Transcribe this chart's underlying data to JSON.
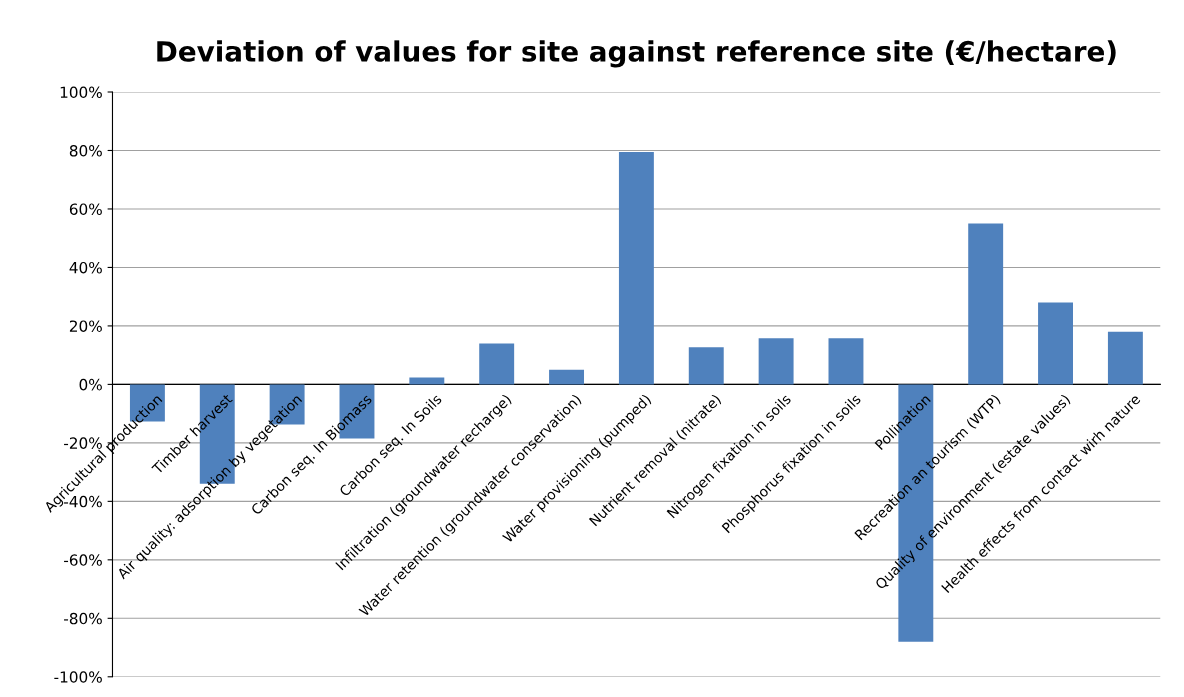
{
  "chart_data": {
    "type": "bar",
    "title": "Deviation of values for site against reference site (€/hectare)",
    "categories": [
      "Agricultural production",
      "Timber harvest",
      "Air quality: adsorption by vegetation",
      "Carbon seq. In Biomass",
      "Carbon seq. In Soils",
      "Infiltration (groundwater recharge)",
      "Water retention (groundwater conservation)",
      "Water provisioning (pumped)",
      "Nutrient removal (nitrate)",
      "Nitrogen fixation in soils",
      "Phosphorus fixation in soils",
      "Pollination",
      "Recreation an tourism (WTP)",
      "Quality of environment (estate values)",
      "Health effects from contact wirh nature"
    ],
    "values": [
      -12.7,
      -34,
      -13.7,
      -18.5,
      2.4,
      14,
      5,
      79.5,
      12.7,
      15.8,
      15.8,
      -88,
      55,
      28,
      18
    ],
    "color": "#4f81bd",
    "ylim": [
      -100,
      100
    ],
    "yticks": [
      {
        "value": -100,
        "label": "-100%"
      },
      {
        "value": -80,
        "label": "-80%"
      },
      {
        "value": -60,
        "label": "-60%"
      },
      {
        "value": -40,
        "label": "-40%"
      },
      {
        "value": -20,
        "label": "-20%"
      },
      {
        "value": 0,
        "label": "0%"
      },
      {
        "value": 20,
        "label": "20%"
      },
      {
        "value": 40,
        "label": "40%"
      },
      {
        "value": 60,
        "label": "60%"
      },
      {
        "value": 80,
        "label": "80%"
      },
      {
        "value": 100,
        "label": "100%"
      }
    ],
    "grid": "y"
  }
}
